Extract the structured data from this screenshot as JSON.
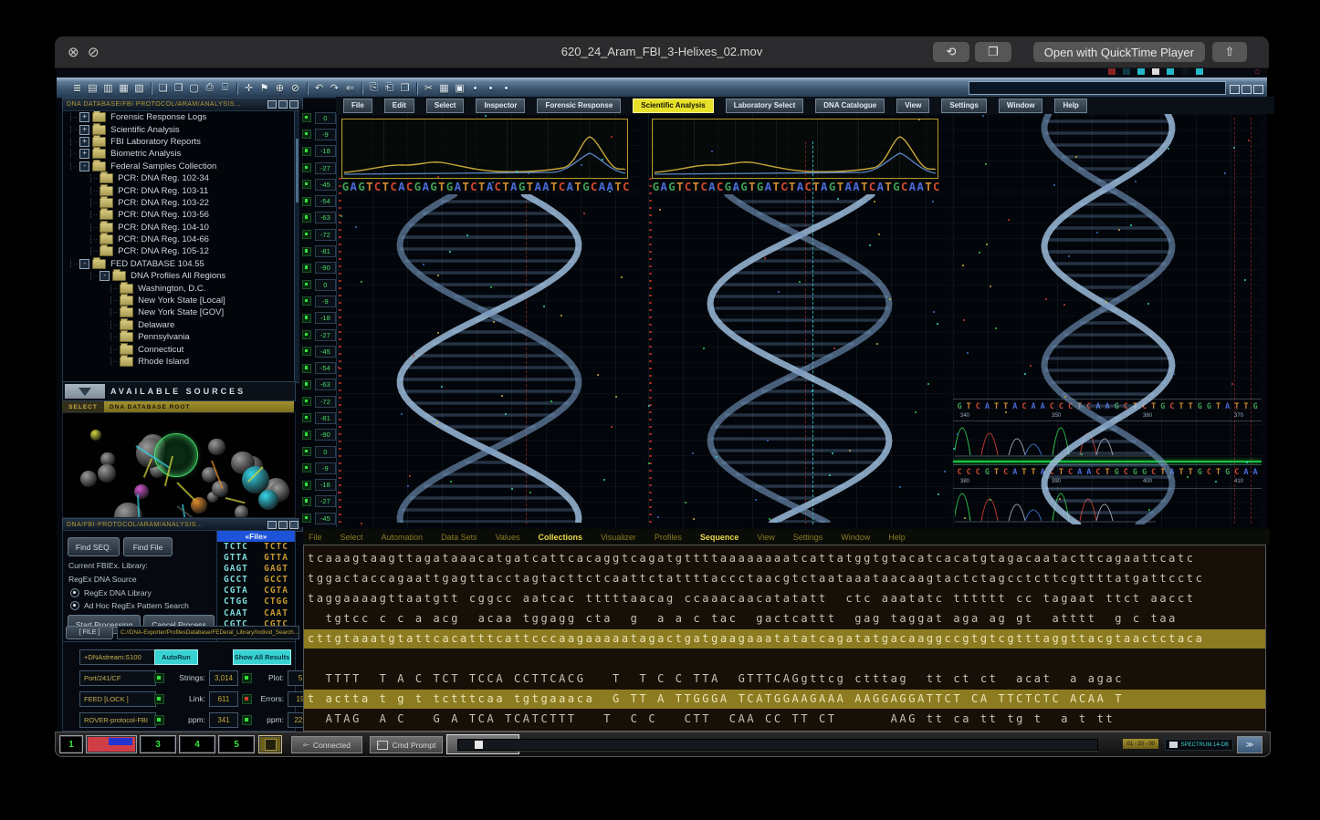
{
  "window": {
    "title": "620_24_Aram_FBI_3-Helixes_02.mov",
    "open_with": "Open with QuickTime Player",
    "icons": {
      "close": "⊗",
      "prohibit": "⊘",
      "rotate": "⟲",
      "markup": "❐",
      "share": "⇧"
    }
  },
  "app": {
    "mini_controls": [
      "#8a2424",
      "#0e3a44",
      "#23b9c9",
      "#dcdcdc",
      "#23b9c9",
      "#0a161e",
      "#23b9c9"
    ],
    "mini_home_color": "#c23030",
    "toolbar_groups": [
      {
        "icons": [
          {
            "name": "list-icon",
            "glyph": "≣"
          },
          {
            "name": "doc-report-icon",
            "glyph": "▤"
          },
          {
            "name": "doc-chart-icon",
            "glyph": "▥"
          },
          {
            "name": "doc-grid-icon",
            "glyph": "▦"
          },
          {
            "name": "doc-notes-icon",
            "glyph": "▧"
          }
        ]
      },
      {
        "icons": [
          {
            "name": "new-doc-icon",
            "glyph": "❏"
          },
          {
            "name": "copy-doc-icon",
            "glyph": "❐"
          },
          {
            "name": "save-icon",
            "glyph": "▢"
          },
          {
            "name": "print-icon",
            "glyph": "⎙"
          },
          {
            "name": "preview-icon",
            "glyph": "⌸"
          }
        ]
      },
      {
        "icons": [
          {
            "name": "add-icon",
            "glyph": "✛"
          },
          {
            "name": "tag-icon",
            "glyph": "⚑"
          },
          {
            "name": "target-icon",
            "glyph": "⊕"
          },
          {
            "name": "block-icon",
            "glyph": "⊘"
          }
        ]
      },
      {
        "icons": [
          {
            "name": "undo-icon",
            "glyph": "↶"
          },
          {
            "name": "redo-icon",
            "glyph": "↷"
          },
          {
            "name": "back-icon",
            "glyph": "⇐"
          }
        ]
      },
      {
        "icons": [
          {
            "name": "copy-icon",
            "glyph": "⎘"
          },
          {
            "name": "paste-icon",
            "glyph": "⎗"
          },
          {
            "name": "duplicate-icon",
            "glyph": "❒"
          }
        ]
      },
      {
        "icons": [
          {
            "name": "cut-icon",
            "glyph": "✂"
          },
          {
            "name": "table-icon",
            "glyph": "▦"
          },
          {
            "name": "panel-icon",
            "glyph": "▣"
          },
          {
            "name": "dot1-icon",
            "glyph": "•"
          },
          {
            "name": "dot2-icon",
            "glyph": "•"
          },
          {
            "name": "dot3-icon",
            "glyph": "•"
          }
        ]
      }
    ],
    "tree": {
      "header": "DNA DATABASE/FBI PROTOCOL/ARAM/ANALYSIS...",
      "items": [
        {
          "label": "Forensic Response Logs",
          "depth": 1,
          "toggle": "+"
        },
        {
          "label": "Scientific Analysis",
          "depth": 1,
          "toggle": "+"
        },
        {
          "label": "FBI Laboratory Reports",
          "depth": 1,
          "toggle": "+"
        },
        {
          "label": "Biometric Analysis",
          "depth": 1,
          "toggle": "+"
        },
        {
          "label": "Federal Samples Collection",
          "depth": 1,
          "toggle": "-"
        },
        {
          "label": "PCR: DNA Reg. 102-34",
          "depth": 2,
          "toggle": null
        },
        {
          "label": "PCR: DNA Reg. 103-11",
          "depth": 2,
          "toggle": null
        },
        {
          "label": "PCR: DNA Reg. 103-22",
          "depth": 2,
          "toggle": null
        },
        {
          "label": "PCR: DNA Reg. 103-56",
          "depth": 2,
          "toggle": null
        },
        {
          "label": "PCR: DNA Reg. 104-10",
          "depth": 2,
          "toggle": null
        },
        {
          "label": "PCR: DNA Reg. 104-66",
          "depth": 2,
          "toggle": null
        },
        {
          "label": "PCR: DNA Reg. 105-12",
          "depth": 2,
          "toggle": null
        },
        {
          "label": "FED DATABASE 104.55",
          "depth": 1,
          "toggle": "-"
        },
        {
          "label": "DNA Profiles All Regions",
          "depth": 2,
          "toggle": "-"
        },
        {
          "label": "Washington, D.C.",
          "depth": 3,
          "toggle": null
        },
        {
          "label": "New York State [Local]",
          "depth": 3,
          "toggle": null
        },
        {
          "label": "New York State [GOV]",
          "depth": 3,
          "toggle": null
        },
        {
          "label": "Delaware",
          "depth": 3,
          "toggle": null
        },
        {
          "label": "Pennsylvania",
          "depth": 3,
          "toggle": null
        },
        {
          "label": "Connecticut",
          "depth": 3,
          "toggle": null
        },
        {
          "label": "Rhode Island",
          "depth": 3,
          "toggle": null
        }
      ]
    },
    "sources": {
      "header": "AVAILABLE SOURCES",
      "select_label": "SELECT",
      "root_label": "DNA DATABASE ROOT"
    },
    "finder": {
      "header": "DNA/FBI-PROTOCOL/ARAM/ANALYSIS...",
      "find_seq": "Find SEQ.",
      "find_file": "Find File",
      "library_line1": "Current FBIEx. Library:",
      "library_line2": "RegEx DNA Source",
      "radio1": "RegEx DNA Library",
      "radio2": "Ad Hoc RegEx Pattern Search",
      "start": "Start Processing",
      "cancel": "Cancel Process",
      "file_header": "«File»",
      "codons": [
        "TCTC",
        "GTTA",
        "GAGT",
        "GCCT",
        "CGTA",
        "CTGG",
        "CAAT",
        "CGTC",
        "ATCG"
      ],
      "file_button": "[ FILE ]",
      "file_path": "C://DNA-Exporter/ProfilesDatabase/FEDeral_Library/Individ_Search..."
    },
    "metrics": {
      "stream": "+DNAstream:S100",
      "autorun": "AutoRun",
      "show_all": "Show All Results",
      "rows": [
        {
          "field": "Port/241/CF",
          "led1": "green",
          "label1": "Strings:",
          "value1": "3,014",
          "led2": "green",
          "label2": "Plot:",
          "value2": "5"
        },
        {
          "field": "FEED [LOCK ]",
          "led1": "green",
          "label1": "Link:",
          "value1": "611",
          "led2": "red",
          "label2": "Errors:",
          "value2": "19"
        },
        {
          "field": "ROVER-protocol-FBI",
          "led1": "green",
          "label1": "ppm:",
          "value1": "341",
          "led2": "green",
          "label2": "ppm:",
          "value2": "222"
        }
      ]
    },
    "led_strip_values": [
      "0",
      "-9",
      "-18",
      "-27",
      "-45",
      "-54",
      "-63",
      "-72",
      "-81",
      "-90",
      "0",
      "-9",
      "-18",
      "-27",
      "-45",
      "-54",
      "-63",
      "-72",
      "-81",
      "-90",
      "0",
      "-9",
      "-18",
      "-27",
      "-45"
    ],
    "menu1": {
      "items": [
        "File",
        "Edit",
        "Select",
        "Inspector",
        "Forensic Response",
        "Scientific Analysis",
        "Laboratory Select",
        "DNA Catalogue",
        "View",
        "Settings",
        "Window",
        "Help"
      ],
      "active_index": 5
    },
    "menu2": {
      "items": [
        "File",
        "Select",
        "Automation",
        "Data Sets",
        "Values",
        "Collections",
        "Visualizer",
        "Profiles",
        "Sequence",
        "View",
        "Settings",
        "Window",
        "Help"
      ],
      "bright_indices": [
        5,
        8
      ]
    },
    "helix_sequence": "GAGTCTCACGAGTGATCTACTAGTAATCATGCAATC",
    "nucleotide_colors": {
      "A": "#4a6bd6",
      "C": "#cf4a2e",
      "G": "#3f9e55",
      "T": "#cf8a2e"
    },
    "panel3": {
      "row1": {
        "letters": "GTCATTACAACCCTCAAGCTCTGCTTGGTATTG",
        "ticks": [
          "340",
          "350",
          "360",
          "370"
        ]
      },
      "row2": {
        "letters": "CCCGTCATTACTCAACTGCGGCTATTGCTGCAA",
        "ticks": [
          "380",
          "390",
          "400",
          "410"
        ]
      }
    },
    "sequence_rows": [
      {
        "text": "tcaaagtaagttagataaacatgatcattcacaggtcagatgttttaaaaaaaatcattatggtgtacatcacatgtagacaatacttcagaattcatc",
        "highlight": false
      },
      {
        "text": "tggactaccagaattgagttacctagtacttctcaattctattttaccctaacgtctaataaataacaagtactctagcctcttcgttttatgattcctc",
        "highlight": false
      },
      {
        "text": "taggaaaagttaatgtt cggcc aatcac tttttaacag ccaaacaacatatatt  ctc aaatatc tttttt cc tagaat ttct aacct",
        "highlight": false
      },
      {
        "text": "  tgtcc c c a acg  acaa tggagg cta  g  a a c tac  gactcattt  gag taggat aga ag gt  atttt  g c taa",
        "highlight": false
      },
      {
        "text": "cttgtaaatgtattcacatttcattcccaagaaaaatagactgatgaagaaatatatcagatatgacaaggccgtgtcgtttaggttacgtaactctaca",
        "highlight": true
      },
      {
        "text": "  TTTT  T A C TCT TCCA CCTTCACG   T  T C C TTA  GTTTCAGgttcg ctttag  tt ct ct  acat  a agac",
        "highlight": false
      },
      {
        "text": "t actta t g t tctttcaa tgtgaaaca  G TT A TTGGGA TCATGGAAGAAA AAGGAGGATTCT CA TTCTCTC ACAA T",
        "highlight": true
      },
      {
        "text": "  ATAG  A C   G A TCA TCATCTTT   T  C C   CTT  CAA CC TT CT      AAG tt ca tt tg t  a t tt",
        "highlight": false
      }
    ],
    "bottom_bar": {
      "slot1": "1",
      "slot3": "3",
      "slot4": "4",
      "slot5": "5",
      "connected": "Connected",
      "cmd_prompt": "Cmd Prompt",
      "run_script": "Run script",
      "badge_gold": "01 - 20 - 00",
      "badge_cyan": "SPECTRUM.14-DB"
    }
  }
}
